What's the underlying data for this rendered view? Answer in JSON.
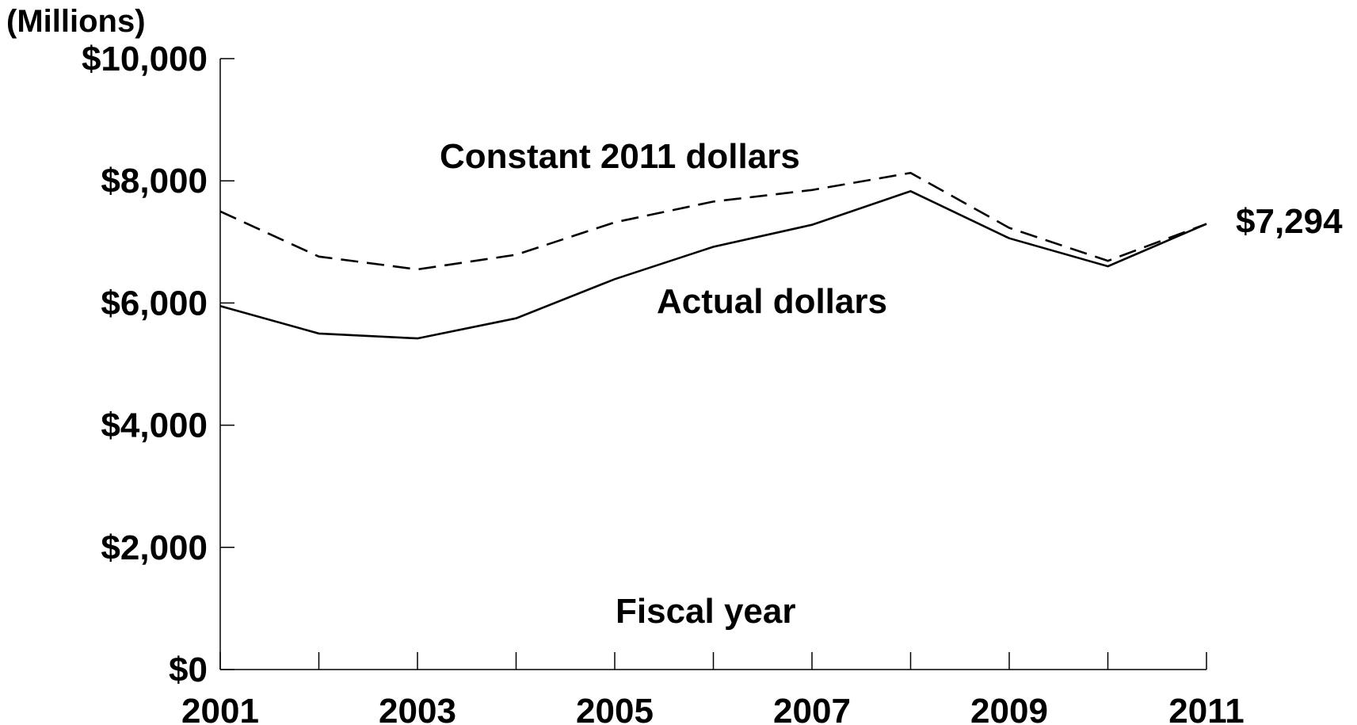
{
  "chart_data": {
    "type": "line",
    "title": "",
    "ylabel": "(Millions)",
    "xlabel": "Fiscal year",
    "x": [
      2001,
      2002,
      2003,
      2004,
      2005,
      2006,
      2007,
      2008,
      2009,
      2010,
      2011
    ],
    "x_tick_labels": [
      "2001",
      "2003",
      "2005",
      "2007",
      "2009",
      "2011"
    ],
    "y_tick_labels": [
      "$0",
      "$2,000",
      "$4,000",
      "$6,000",
      "$8,000",
      "$10,000"
    ],
    "y_ticks": [
      0,
      2000,
      4000,
      6000,
      8000,
      10000
    ],
    "ylim": [
      0,
      10000
    ],
    "xlim": [
      2001,
      2011
    ],
    "grid": false,
    "legend": "none",
    "series": [
      {
        "name": "Constant 2011 dollars",
        "style": "dashed",
        "values": [
          7500,
          6760,
          6550,
          6790,
          7320,
          7660,
          7850,
          8130,
          7230,
          6690,
          7294
        ]
      },
      {
        "name": "Actual dollars",
        "style": "solid",
        "values": [
          5950,
          5500,
          5420,
          5750,
          6390,
          6920,
          7280,
          7830,
          7060,
          6600,
          7294
        ]
      }
    ],
    "annotations": [
      {
        "text": "$7,294",
        "x": 2011,
        "y": 7294
      }
    ],
    "line_color": "#000000"
  }
}
